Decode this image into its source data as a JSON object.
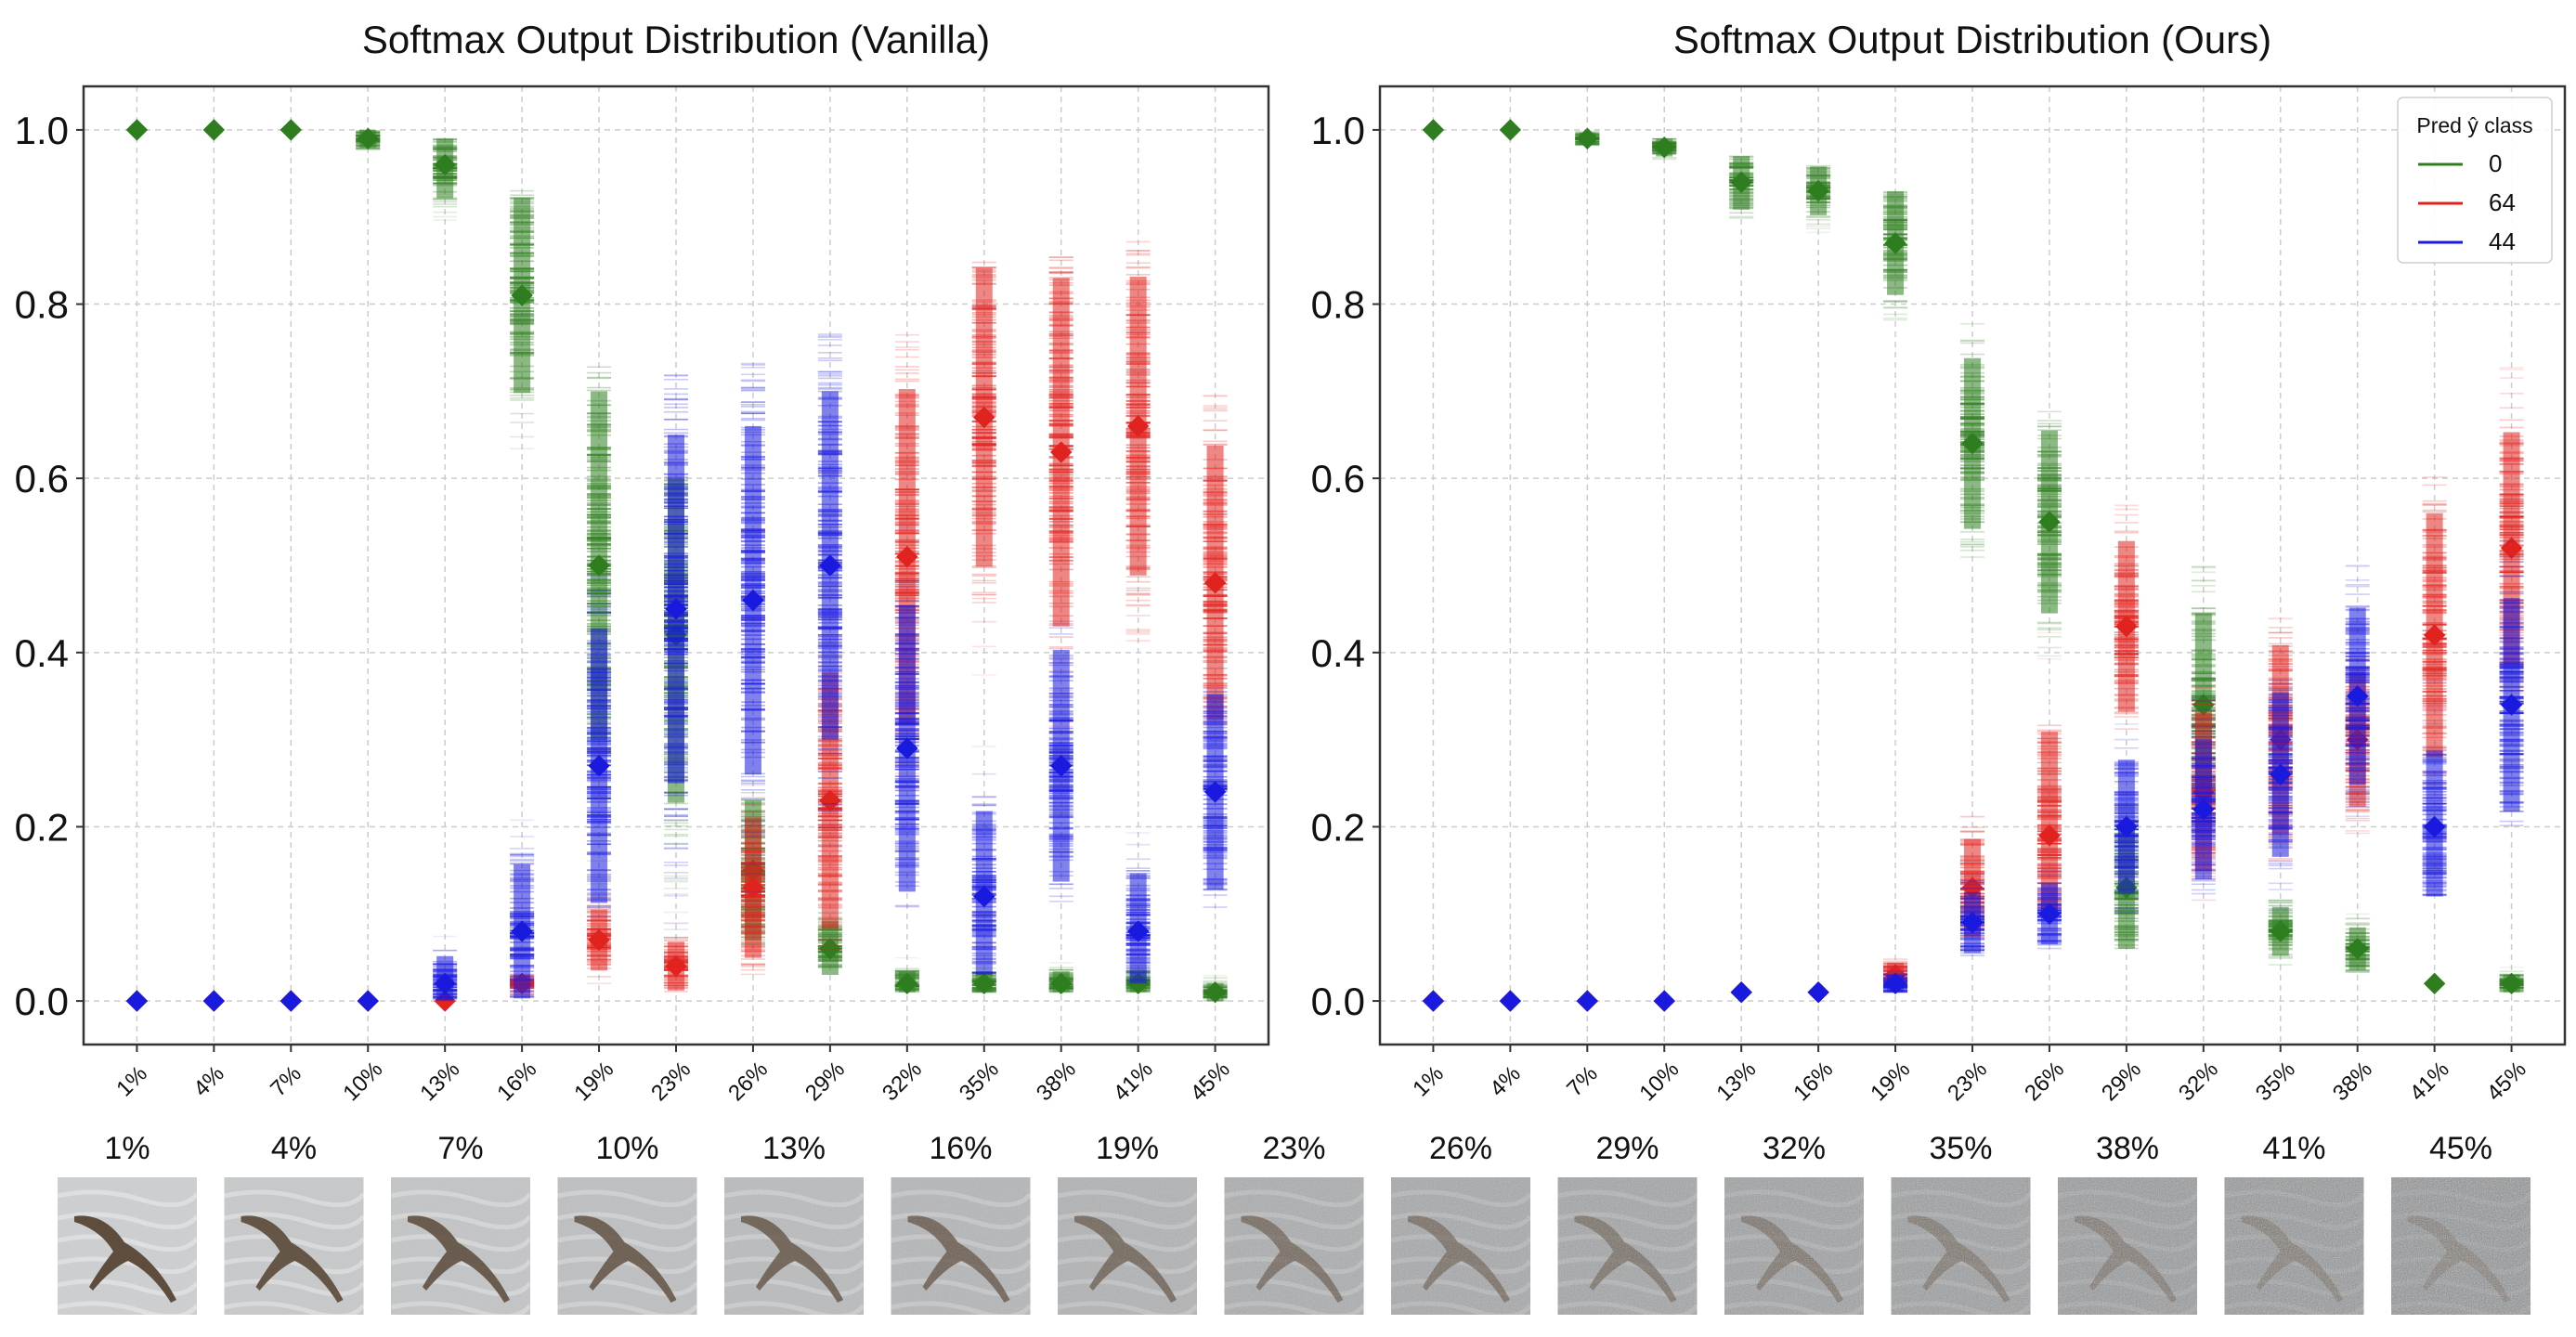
{
  "noise_levels": [
    "1%",
    "4%",
    "7%",
    "10%",
    "13%",
    "16%",
    "19%",
    "23%",
    "26%",
    "29%",
    "32%",
    "35%",
    "38%",
    "41%",
    "45%"
  ],
  "colors": {
    "class_0": "#2e7d1f",
    "class_64": "#e0231f",
    "class_44": "#1a1adf",
    "axis": "#333333",
    "grid": "#cccccc"
  },
  "chart_data": [
    {
      "type": "scatter",
      "title": "Softmax Output Distribution (Vanilla)",
      "xlabel": "",
      "ylabel": "",
      "categories": [
        "1%",
        "4%",
        "7%",
        "10%",
        "13%",
        "16%",
        "19%",
        "23%",
        "26%",
        "29%",
        "32%",
        "35%",
        "38%",
        "41%",
        "45%"
      ],
      "ylim": [
        -0.05,
        1.05
      ],
      "yticks": [
        0.0,
        0.2,
        0.4,
        0.6,
        0.8,
        1.0
      ],
      "ytick_labels": [
        "0.0",
        "0.2",
        "0.4",
        "0.6",
        "0.8",
        "1.0"
      ],
      "grid": true,
      "series": [
        {
          "color": "#2e7d1f",
          "means": [
            1.0,
            1.0,
            1.0,
            0.99,
            0.96,
            0.81,
            0.5,
            0.42,
            0.15,
            0.06,
            0.02,
            0.02,
            0.02,
            0.02,
            0.01
          ],
          "mins": [
            0.995,
            0.995,
            0.995,
            0.97,
            0.88,
            0.61,
            0.08,
            0.05,
            0.05,
            0.03,
            0.01,
            0.01,
            0.01,
            0.01,
            0.0
          ],
          "maxs": [
            1.0,
            1.0,
            1.0,
            1.0,
            0.99,
            0.93,
            0.73,
            0.6,
            0.28,
            0.12,
            0.05,
            0.05,
            0.05,
            0.05,
            0.03
          ]
        },
        {
          "color": "#e0231f",
          "means": [
            0.0,
            0.0,
            0.0,
            0.0,
            0.0,
            0.02,
            0.07,
            0.04,
            0.13,
            0.23,
            0.51,
            0.67,
            0.63,
            0.66,
            0.48
          ],
          "mins": [
            0.0,
            0.0,
            0.0,
            0.0,
            0.0,
            0.0,
            0.02,
            0.01,
            0.03,
            0.05,
            0.22,
            0.36,
            0.25,
            0.41,
            0.26
          ],
          "maxs": [
            0.0,
            0.0,
            0.0,
            0.01,
            0.01,
            0.03,
            0.12,
            0.09,
            0.26,
            0.47,
            0.77,
            0.85,
            0.86,
            0.9,
            0.71
          ]
        },
        {
          "color": "#1a1adf",
          "means": [
            0.0,
            0.0,
            0.0,
            0.0,
            0.02,
            0.08,
            0.27,
            0.45,
            0.46,
            0.5,
            0.29,
            0.12,
            0.27,
            0.08,
            0.24
          ],
          "mins": [
            0.0,
            0.0,
            0.0,
            0.0,
            0.0,
            0.0,
            0.05,
            0.08,
            0.11,
            0.15,
            0.1,
            0.03,
            0.1,
            0.02,
            0.1
          ],
          "maxs": [
            0.0,
            0.0,
            0.0,
            0.02,
            0.09,
            0.22,
            0.5,
            0.74,
            0.74,
            0.77,
            0.57,
            0.31,
            0.48,
            0.21,
            0.42
          ]
        }
      ]
    },
    {
      "type": "scatter",
      "title": "Softmax Output Distribution (Ours)",
      "xlabel": "",
      "ylabel": "",
      "categories": [
        "1%",
        "4%",
        "7%",
        "10%",
        "13%",
        "16%",
        "19%",
        "23%",
        "26%",
        "29%",
        "32%",
        "35%",
        "38%",
        "41%",
        "45%"
      ],
      "ylim": [
        -0.05,
        1.05
      ],
      "yticks": [
        0.0,
        0.2,
        0.4,
        0.6,
        0.8,
        1.0
      ],
      "ytick_labels": [
        "0.0",
        "0.2",
        "0.4",
        "0.6",
        "0.8",
        "1.0"
      ],
      "grid": true,
      "legend": {
        "title": "Pred ŷ class",
        "placement": "top-right",
        "entries": [
          "0",
          "64",
          "44"
        ]
      },
      "series": [
        {
          "name": "0",
          "color": "#2e7d1f",
          "means": [
            1.0,
            1.0,
            0.99,
            0.98,
            0.94,
            0.93,
            0.87,
            0.64,
            0.55,
            0.13,
            0.34,
            0.08,
            0.06,
            0.02,
            0.02
          ],
          "mins": [
            0.995,
            0.995,
            0.98,
            0.96,
            0.88,
            0.88,
            0.76,
            0.5,
            0.38,
            0.06,
            0.2,
            0.04,
            0.03,
            0.01,
            0.01
          ],
          "maxs": [
            1.0,
            1.0,
            1.0,
            0.99,
            0.97,
            0.96,
            0.93,
            0.78,
            0.68,
            0.26,
            0.5,
            0.12,
            0.1,
            0.03,
            0.04
          ]
        },
        {
          "name": "64",
          "color": "#e0231f",
          "means": [
            0.0,
            0.0,
            0.0,
            0.0,
            0.01,
            0.01,
            0.03,
            0.13,
            0.19,
            0.43,
            0.24,
            0.3,
            0.3,
            0.42,
            0.52
          ],
          "mins": [
            0.0,
            0.0,
            0.0,
            0.0,
            0.0,
            0.0,
            0.01,
            0.07,
            0.1,
            0.3,
            0.11,
            0.14,
            0.18,
            0.22,
            0.35
          ],
          "maxs": [
            0.0,
            0.0,
            0.0,
            0.01,
            0.02,
            0.02,
            0.05,
            0.23,
            0.44,
            0.58,
            0.37,
            0.45,
            0.4,
            0.62,
            0.73
          ]
        },
        {
          "name": "44",
          "color": "#1a1adf",
          "means": [
            0.0,
            0.0,
            0.0,
            0.0,
            0.01,
            0.01,
            0.02,
            0.09,
            0.1,
            0.2,
            0.22,
            0.26,
            0.35,
            0.2,
            0.34
          ],
          "mins": [
            0.0,
            0.0,
            0.0,
            0.0,
            0.0,
            0.0,
            0.01,
            0.05,
            0.06,
            0.1,
            0.12,
            0.1,
            0.21,
            0.12,
            0.19
          ],
          "maxs": [
            0.0,
            0.0,
            0.0,
            0.01,
            0.02,
            0.02,
            0.04,
            0.15,
            0.16,
            0.32,
            0.35,
            0.37,
            0.5,
            0.37,
            0.54
          ]
        }
      ]
    }
  ],
  "thumbnails": {
    "labels": [
      "1%",
      "4%",
      "7%",
      "10%",
      "13%",
      "16%",
      "19%",
      "23%",
      "26%",
      "29%",
      "32%",
      "35%",
      "38%",
      "41%",
      "45%"
    ],
    "noise_fraction": [
      0.01,
      0.04,
      0.07,
      0.1,
      0.13,
      0.16,
      0.19,
      0.23,
      0.26,
      0.29,
      0.32,
      0.35,
      0.38,
      0.41,
      0.45
    ],
    "subject_icon": "bird-icon"
  }
}
